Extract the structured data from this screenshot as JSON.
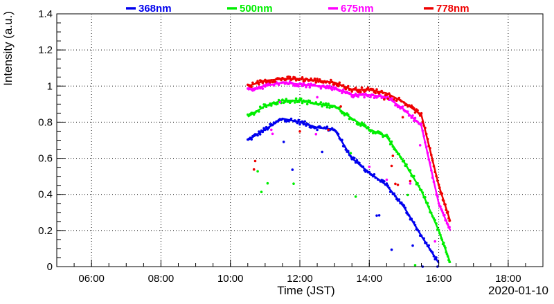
{
  "chart_data": {
    "type": "scatter",
    "title": "",
    "xlabel": "Time (JST)",
    "ylabel": "Intensity (a.u.)",
    "date_label": "2020-01-10",
    "xlim": [
      "05:00",
      "19:00"
    ],
    "ylim": [
      0,
      1.4
    ],
    "grid": true,
    "legend_placement": "top",
    "x_ticks": [
      "06:00",
      "08:00",
      "10:00",
      "12:00",
      "14:00",
      "16:00",
      "18:00"
    ],
    "y_ticks": [
      "0",
      "0.2",
      "0.4",
      "0.6",
      "0.8",
      "1",
      "1.2",
      "1.4"
    ],
    "series": [
      {
        "name": "368nm",
        "color": "#0000ee",
        "x": [
          "10:30",
          "11:00",
          "11:30",
          "12:00",
          "12:30",
          "13:00",
          "13:30",
          "14:00",
          "14:30",
          "15:00",
          "15:30",
          "16:00"
        ],
        "y": [
          0.7,
          0.76,
          0.82,
          0.8,
          0.77,
          0.76,
          0.6,
          0.52,
          0.45,
          0.33,
          0.17,
          0.02
        ]
      },
      {
        "name": "500nm",
        "color": "#00ee00",
        "x": [
          "10:30",
          "11:00",
          "11:30",
          "12:00",
          "12:30",
          "13:00",
          "13:30",
          "14:00",
          "14:30",
          "15:00",
          "15:30",
          "16:00",
          "16:20"
        ],
        "y": [
          0.83,
          0.89,
          0.92,
          0.92,
          0.9,
          0.89,
          0.82,
          0.76,
          0.72,
          0.58,
          0.42,
          0.2,
          0.02
        ]
      },
      {
        "name": "675nm",
        "color": "#ff00ff",
        "x": [
          "10:30",
          "11:00",
          "11:30",
          "12:00",
          "12:30",
          "13:00",
          "13:30",
          "14:00",
          "14:30",
          "15:00",
          "15:30",
          "16:00",
          "16:20"
        ],
        "y": [
          0.98,
          1.0,
          1.02,
          1.01,
          1.0,
          0.99,
          0.95,
          0.95,
          0.94,
          0.87,
          0.78,
          0.35,
          0.2
        ]
      },
      {
        "name": "778nm",
        "color": "#ee0000",
        "x": [
          "10:30",
          "11:00",
          "11:30",
          "12:00",
          "12:30",
          "13:00",
          "13:30",
          "14:00",
          "14:30",
          "15:00",
          "15:30",
          "16:00",
          "16:20"
        ],
        "y": [
          1.0,
          1.03,
          1.04,
          1.04,
          1.03,
          1.02,
          0.98,
          0.98,
          0.96,
          0.91,
          0.84,
          0.45,
          0.25
        ]
      }
    ]
  }
}
